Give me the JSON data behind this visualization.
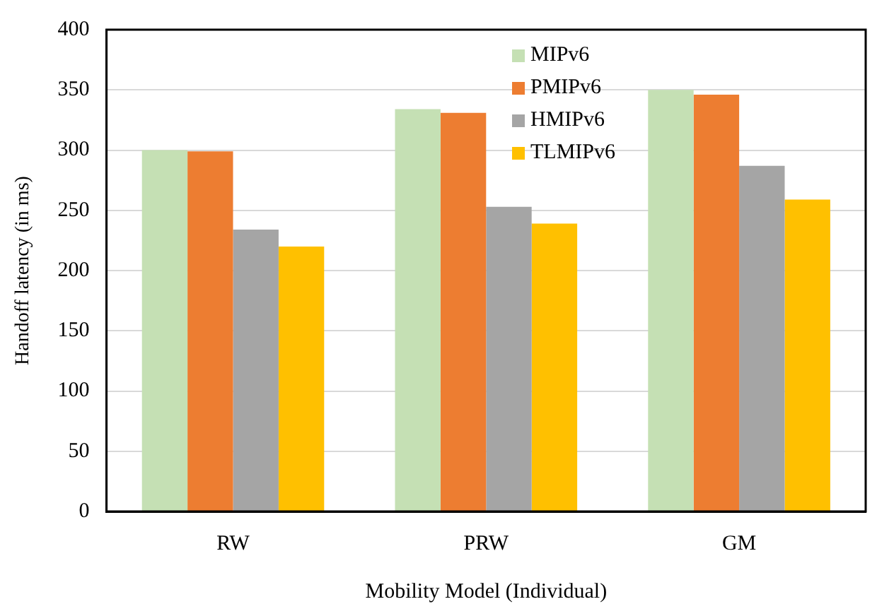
{
  "chart_data": {
    "type": "bar",
    "xlabel": "Mobility Model (Individual)",
    "ylabel": "Handoff latency (in ms)",
    "categories": [
      "RW",
      "PRW",
      "GM"
    ],
    "series": [
      {
        "name": "MIPv6",
        "color": "#c5e0b4",
        "values": [
          300,
          334,
          350
        ]
      },
      {
        "name": "PMIPv6",
        "color": "#ed7d31",
        "values": [
          299,
          331,
          346
        ]
      },
      {
        "name": "HMIPv6",
        "color": "#a5a5a5",
        "values": [
          234,
          253,
          287
        ]
      },
      {
        "name": "TLMIPv6",
        "color": "#ffc000",
        "values": [
          220,
          239,
          259
        ]
      }
    ],
    "ylim": [
      0,
      400
    ],
    "yticks": [
      0,
      50,
      100,
      150,
      200,
      250,
      300,
      350,
      400
    ],
    "grid": "y",
    "legend": "top"
  }
}
